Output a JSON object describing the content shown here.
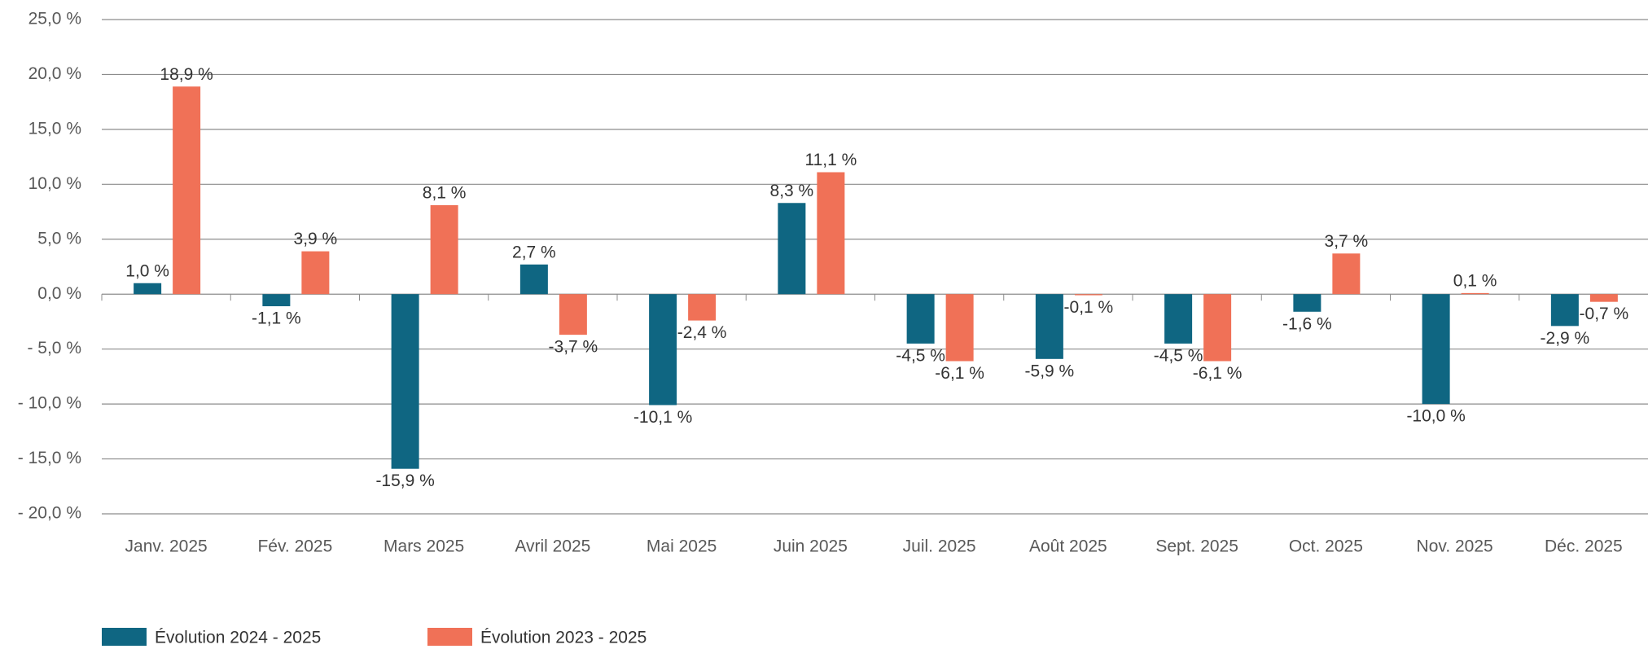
{
  "chart_data": {
    "type": "bar",
    "categories": [
      "Janv. 2025",
      "Fév. 2025",
      "Mars 2025",
      "Avril 2025",
      "Mai 2025",
      "Juin 2025",
      "Juil. 2025",
      "Août 2025",
      "Sept. 2025",
      "Oct. 2025",
      "Nov. 2025",
      "Déc. 2025"
    ],
    "series": [
      {
        "name": "Évolution 2024 - 2025",
        "color": "#0f6682",
        "values": [
          1.0,
          -1.1,
          -15.9,
          2.7,
          -10.1,
          8.3,
          -4.5,
          -5.9,
          -4.5,
          -1.6,
          -10.0,
          -2.9
        ],
        "value_labels": [
          "1,0 %",
          "-1,1 %",
          "-15,9 %",
          "2,7 %",
          "-10,1 %",
          "8,3 %",
          "-4,5 %",
          "-5,9 %",
          "-4,5 %",
          "-1,6 %",
          "-10,0 %",
          "-2,9 %"
        ]
      },
      {
        "name": "Évolution 2023 - 2025",
        "color": "#f07157",
        "values": [
          18.9,
          3.9,
          8.1,
          -3.7,
          -2.4,
          11.1,
          -6.1,
          -0.1,
          -6.1,
          3.7,
          0.1,
          -0.7
        ],
        "value_labels": [
          "18,9 %",
          "3,9 %",
          "8,1 %",
          "-3,7 %",
          "-2,4 %",
          "11,1 %",
          "-6,1 %",
          "-0,1 %",
          "-6,1 %",
          "3,7 %",
          "0,1 %",
          "-0,7 %"
        ]
      }
    ],
    "ylim": [
      -20,
      25
    ],
    "yticks": [
      {
        "value": -20,
        "label": "- 20,0 %"
      },
      {
        "value": -15,
        "label": "- 15,0 %"
      },
      {
        "value": -10,
        "label": "- 10,0 %"
      },
      {
        "value": -5,
        "label": "- 5,0 %"
      },
      {
        "value": 0,
        "label": "0,0 %"
      },
      {
        "value": 5,
        "label": "5,0 %"
      },
      {
        "value": 10,
        "label": "10,0 %"
      },
      {
        "value": 15,
        "label": "15,0 %"
      },
      {
        "value": 20,
        "label": "20,0 %"
      },
      {
        "value": 25,
        "label": "25,0 %"
      }
    ],
    "grid": true
  }
}
